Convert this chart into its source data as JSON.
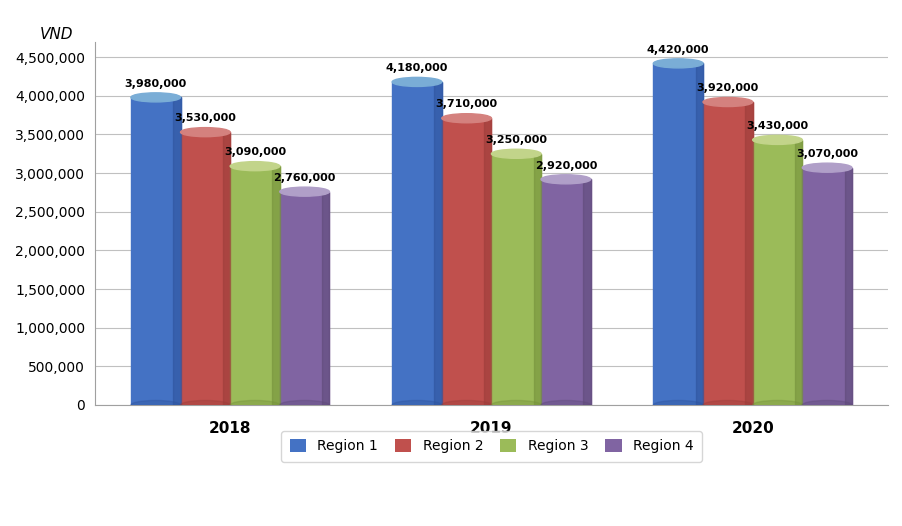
{
  "years": [
    "2018",
    "2019",
    "2020"
  ],
  "regions": [
    "Region 1",
    "Region 2",
    "Region 3",
    "Region 4"
  ],
  "values": {
    "2018": [
      3980000,
      3530000,
      3090000,
      2760000
    ],
    "2019": [
      4180000,
      3710000,
      3250000,
      2920000
    ],
    "2020": [
      4420000,
      3920000,
      3430000,
      3070000
    ]
  },
  "colors": [
    "#4472C4",
    "#C0504D",
    "#9BBB59",
    "#8064A2"
  ],
  "dark_colors": [
    "#2F549E",
    "#9C3D3A",
    "#76923C",
    "#5F4B7A"
  ],
  "light_colors": [
    "#7AADD6",
    "#D4817E",
    "#C2D48A",
    "#B09FC8"
  ],
  "ylabel": "VND",
  "ylim": [
    0,
    4700000
  ],
  "yticks": [
    0,
    500000,
    1000000,
    1500000,
    2000000,
    2500000,
    3000000,
    3500000,
    4000000,
    4500000
  ],
  "bar_width": 0.19,
  "background_color": "#FFFFFF",
  "plot_bg_color": "#FFFFFF",
  "grid_color": "#C0C0C0",
  "legend_labels": [
    "Region 1",
    "Region 2",
    "Region 3",
    "Region 4"
  ]
}
